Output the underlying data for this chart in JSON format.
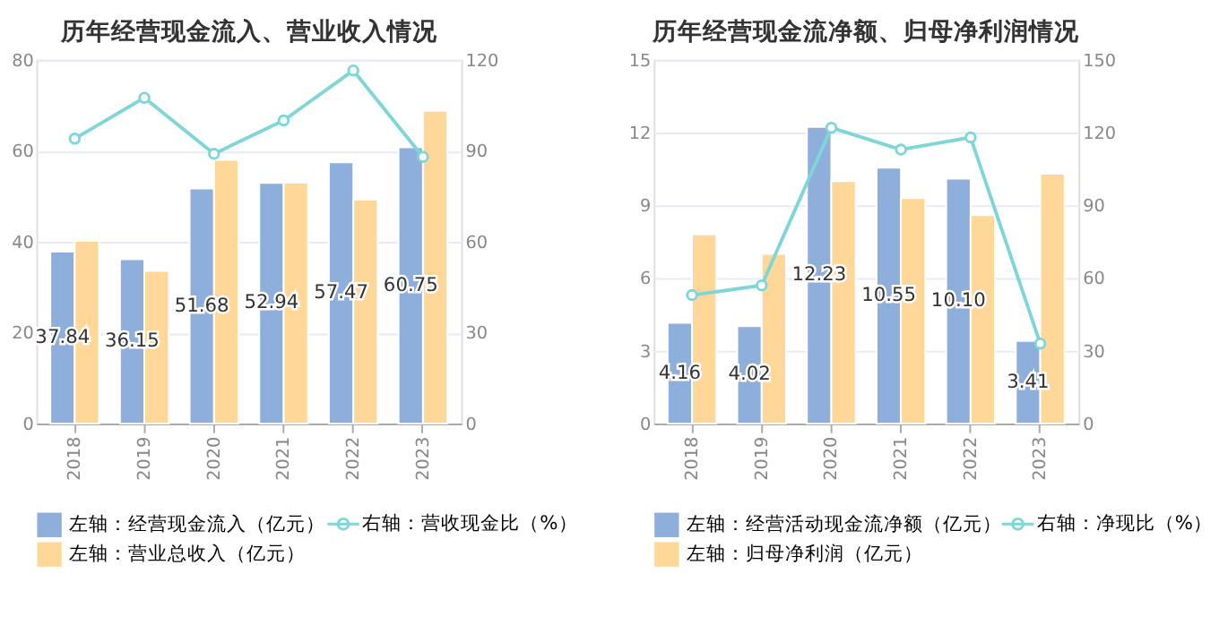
{
  "chart_data": [
    {
      "type": "bar",
      "title": "历年经营现金流入、营业收入情况",
      "categories": [
        "2018",
        "2019",
        "2020",
        "2021",
        "2022",
        "2023"
      ],
      "series": [
        {
          "name": "左轴：经营现金流入（亿元）",
          "color": "#8eaedb",
          "values": [
            37.84,
            36.15,
            51.68,
            52.94,
            57.47,
            60.75
          ],
          "value_labels": [
            "37.84",
            "36.15",
            "51.68",
            "52.94",
            "57.47",
            "60.75"
          ]
        },
        {
          "name": "左轴：营业总收入（亿元）",
          "color": "#ffd899",
          "values": [
            40.2,
            33.6,
            58.0,
            53.0,
            49.3,
            68.8
          ]
        },
        {
          "name": "右轴：营收现金比（%）",
          "color": "#7fd6d8",
          "type": "line",
          "axis": "y2",
          "marker": "circle",
          "values": [
            94,
            107.5,
            89,
            100,
            116.5,
            88
          ]
        }
      ],
      "ylim": [
        0,
        80
      ],
      "yticks": [
        0,
        20,
        40,
        60,
        80
      ],
      "y2lim": [
        0,
        120
      ],
      "y2ticks": [
        0,
        30,
        60,
        90,
        120
      ],
      "grid": "y",
      "legend": "bottom"
    },
    {
      "type": "bar",
      "title": "历年经营现金流净额、归母净利润情况",
      "categories": [
        "2018",
        "2019",
        "2020",
        "2021",
        "2022",
        "2023"
      ],
      "series": [
        {
          "name": "左轴：经营活动现金流净额（亿元）",
          "color": "#8eaedb",
          "values": [
            4.16,
            4.02,
            12.23,
            10.55,
            10.1,
            3.41
          ],
          "value_labels": [
            "4.16",
            "4.02",
            "12.23",
            "10.55",
            "10.10",
            "3.41"
          ]
        },
        {
          "name": "左轴：归母净利润（亿元）",
          "color": "#ffd899",
          "values": [
            7.8,
            7.0,
            10.0,
            9.3,
            8.6,
            10.3
          ]
        },
        {
          "name": "右轴：净现比（%）",
          "color": "#7fd6d8",
          "type": "line",
          "axis": "y2",
          "marker": "circle",
          "values": [
            53,
            57,
            122,
            113,
            118,
            33
          ]
        }
      ],
      "ylim": [
        0,
        15
      ],
      "yticks": [
        0,
        3,
        6,
        9,
        12,
        15
      ],
      "y2lim": [
        0,
        150
      ],
      "y2ticks": [
        0,
        30,
        60,
        90,
        120,
        150
      ],
      "grid": "y",
      "legend": "bottom"
    }
  ]
}
